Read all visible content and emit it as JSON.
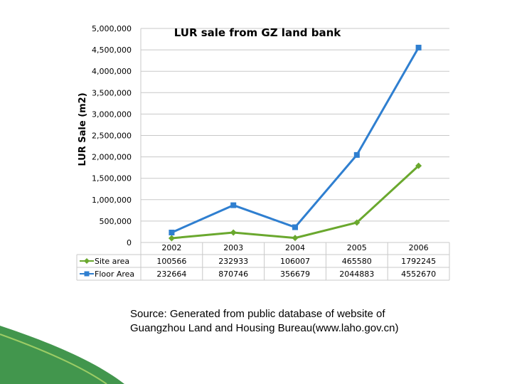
{
  "chart_data": {
    "type": "line",
    "title": "LUR sale from GZ land bank",
    "ylabel": "LUR  Sale (m2)",
    "xlabel": "",
    "ylim": [
      0,
      5000000
    ],
    "y_ticks": [
      "0",
      "500,000",
      "1,000,000",
      "1,500,000",
      "2,000,000",
      "2,500,000",
      "3,000,000",
      "3,500,000",
      "4,000,000",
      "4,500,000",
      "5,000,000"
    ],
    "categories": [
      "2002",
      "2003",
      "2004",
      "2005",
      "2006"
    ],
    "grid": true,
    "legend": "data-table",
    "series": [
      {
        "name": "Site area",
        "color": "#6aa82e",
        "marker": "diamond",
        "values": [
          100566,
          232933,
          106007,
          465580,
          1792245
        ],
        "labels": [
          "100566",
          "232933",
          "106007",
          "465580",
          "1792245"
        ]
      },
      {
        "name": "Floor Area",
        "color": "#2f7fd0",
        "marker": "square",
        "values": [
          232664,
          870746,
          356679,
          2044883,
          4552670
        ],
        "labels": [
          "232664",
          "870746",
          "356679",
          "2044883",
          "4552670"
        ]
      }
    ]
  },
  "source": {
    "line1": "Source: Generated from  public database of website of",
    "line2": "Guangzhou Land and Housing Bureau(www.laho.gov.cn)"
  },
  "decoration": {
    "bottom_swoosh_color": "#2e8b3a"
  }
}
